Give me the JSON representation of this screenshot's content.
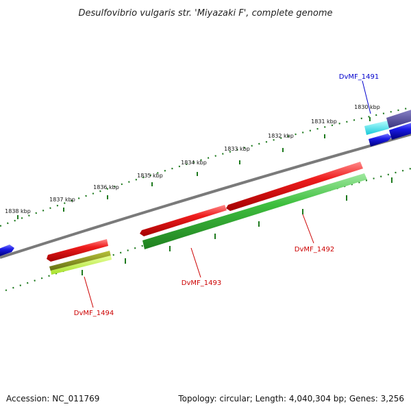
{
  "title": "Desulfovibrio vulgaris str. 'Miyazaki F', complete genome",
  "footer": {
    "accession": "Accession: NC_011769",
    "summary": "Topology: circular; Length: 4,040,304 bp; Genes: 3,256"
  },
  "colors": {
    "backbone": "#7a7a7a",
    "tick": "#1e7a1e",
    "red": "#e21b1b",
    "green": "#3fbf3f",
    "blue": "#1a1ae6",
    "label_red": "#cc0000",
    "label_blue": "#0000cc"
  },
  "scale_labels": [
    "1838 kbp",
    "1837 kbp",
    "1836 kbp",
    "1835 kbp",
    "1834 kbp",
    "1833 kbp",
    "1832 kbp",
    "1831 kbp",
    "1830 kbp"
  ],
  "gene_labels": {
    "dvmf_1491": "DvMF_1491",
    "dvmf_1492": "DvMF_1492",
    "dvmf_1493": "DvMF_1493",
    "dvmf_1494": "DvMF_1494"
  }
}
